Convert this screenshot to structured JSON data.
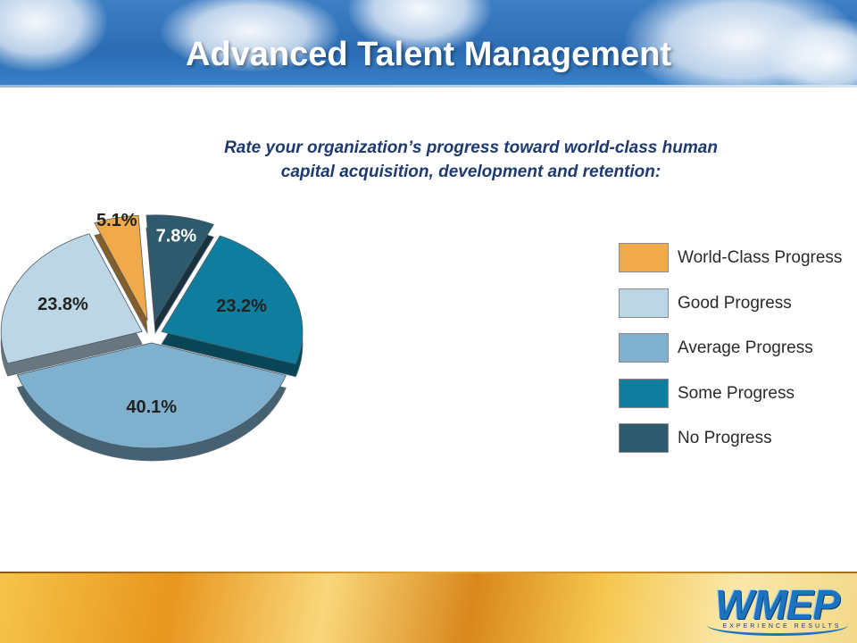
{
  "slide": {
    "title": "Advanced Talent Management",
    "question_line1": "Rate your organization’s progress toward world-class human",
    "question_line2": "capital acquisition, development and retention:"
  },
  "chart_data": {
    "type": "pie",
    "title": "",
    "slices": [
      {
        "label": "World-Class Progress",
        "value": 5.1,
        "value_label": "5.1%",
        "color": "#f0a94b"
      },
      {
        "label": "No Progress",
        "value": 7.8,
        "value_label": "7.8%",
        "color": "#2e5a6e"
      },
      {
        "label": "Some Progress",
        "value": 23.2,
        "value_label": "23.2%",
        "color": "#0f7e9e"
      },
      {
        "label": "Average Progress",
        "value": 40.1,
        "value_label": "40.1%",
        "color": "#7fb1cf"
      },
      {
        "label": "Good Progress",
        "value": 23.8,
        "value_label": "23.8%",
        "color": "#bcd6e6"
      }
    ],
    "legend": [
      {
        "label": "World-Class Progress",
        "color": "#f0a94b"
      },
      {
        "label": "Good Progress",
        "color": "#bcd6e6"
      },
      {
        "label": "Average Progress",
        "color": "#7fb1cf"
      },
      {
        "label": "Some Progress",
        "color": "#0f7e9e"
      },
      {
        "label": "No Progress",
        "color": "#2e5a6e"
      }
    ],
    "legend_position": "right",
    "exploded": true,
    "style": "3d"
  },
  "footer": {
    "logo_text": "WMEP",
    "tagline": "EXPERIENCE RESULTS"
  }
}
